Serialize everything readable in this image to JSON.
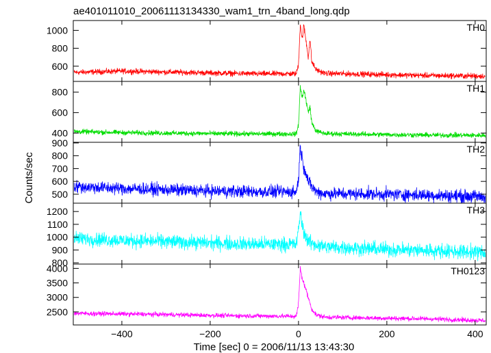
{
  "chart_data": {
    "type": "line",
    "title": "ae401011010_20061113134330_wam1_trn_4band_long.qdp",
    "xlabel": "Time [sec] 0 = 2006/11/13 13:43:30",
    "ylabel": "Counts/sec",
    "xlim": [
      -510,
      425
    ],
    "x_ticks": [
      -400,
      -200,
      0,
      200,
      400
    ],
    "grid": false,
    "panels": [
      {
        "name": "TH0",
        "color": "#ff0000",
        "ylim": [
          430,
          1110
        ],
        "y_ticks": [
          600,
          800,
          1000
        ],
        "profile": [
          [
            -510,
            530
          ],
          [
            -400,
            545
          ],
          [
            -300,
            535
          ],
          [
            -200,
            525
          ],
          [
            -100,
            515
          ],
          [
            -5,
            515
          ],
          [
            0,
            620
          ],
          [
            4,
            1080
          ],
          [
            8,
            900
          ],
          [
            12,
            1050
          ],
          [
            18,
            850
          ],
          [
            22,
            700
          ],
          [
            26,
            900
          ],
          [
            30,
            650
          ],
          [
            40,
            560
          ],
          [
            60,
            520
          ],
          [
            200,
            505
          ],
          [
            300,
            495
          ],
          [
            425,
            490
          ]
        ],
        "noise": 18
      },
      {
        "name": "TH1",
        "color": "#00dd00",
        "ylim": [
          310,
          905
        ],
        "y_ticks": [
          400,
          600,
          800
        ],
        "profile": [
          [
            -510,
            415
          ],
          [
            -400,
            405
          ],
          [
            -300,
            400
          ],
          [
            -200,
            395
          ],
          [
            -100,
            392
          ],
          [
            -5,
            392
          ],
          [
            0,
            480
          ],
          [
            4,
            850
          ],
          [
            8,
            750
          ],
          [
            12,
            820
          ],
          [
            18,
            700
          ],
          [
            22,
            600
          ],
          [
            26,
            660
          ],
          [
            30,
            500
          ],
          [
            40,
            420
          ],
          [
            60,
            395
          ],
          [
            200,
            385
          ],
          [
            300,
            380
          ],
          [
            425,
            378
          ]
        ],
        "noise": 14
      },
      {
        "name": "TH2",
        "color": "#0000ff",
        "ylim": [
          430,
          905
        ],
        "y_ticks": [
          500,
          600,
          700,
          800,
          900
        ],
        "profile": [
          [
            -510,
            560
          ],
          [
            -400,
            545
          ],
          [
            -300,
            535
          ],
          [
            -200,
            525
          ],
          [
            -100,
            520
          ],
          [
            -5,
            518
          ],
          [
            0,
            620
          ],
          [
            4,
            880
          ],
          [
            8,
            780
          ],
          [
            12,
            720
          ],
          [
            18,
            650
          ],
          [
            22,
            600
          ],
          [
            30,
            560
          ],
          [
            40,
            520
          ],
          [
            60,
            505
          ],
          [
            200,
            500
          ],
          [
            300,
            492
          ],
          [
            425,
            480
          ]
        ],
        "noise": 28
      },
      {
        "name": "TH3",
        "color": "#00ffff",
        "ylim": [
          790,
          1265
        ],
        "y_ticks": [
          800,
          900,
          1000,
          1100,
          1200
        ],
        "profile": [
          [
            -510,
            990
          ],
          [
            -400,
            975
          ],
          [
            -300,
            965
          ],
          [
            -200,
            955
          ],
          [
            -100,
            945
          ],
          [
            -5,
            945
          ],
          [
            0,
            1050
          ],
          [
            4,
            1200
          ],
          [
            8,
            1100
          ],
          [
            12,
            1040
          ],
          [
            20,
            980
          ],
          [
            30,
            950
          ],
          [
            60,
            925
          ],
          [
            200,
            905
          ],
          [
            300,
            895
          ],
          [
            425,
            880
          ]
        ],
        "noise": 32
      },
      {
        "name": "TH0123",
        "color": "#ff00ff",
        "ylim": [
          2050,
          4150
        ],
        "y_ticks": [
          2500,
          3000,
          3500,
          4000
        ],
        "profile": [
          [
            -510,
            2450
          ],
          [
            -400,
            2430
          ],
          [
            -300,
            2410
          ],
          [
            -200,
            2380
          ],
          [
            -100,
            2360
          ],
          [
            -5,
            2350
          ],
          [
            0,
            2800
          ],
          [
            4,
            4000
          ],
          [
            8,
            3700
          ],
          [
            12,
            3500
          ],
          [
            16,
            3300
          ],
          [
            20,
            3100
          ],
          [
            24,
            2900
          ],
          [
            30,
            2600
          ],
          [
            40,
            2400
          ],
          [
            60,
            2320
          ],
          [
            200,
            2280
          ],
          [
            300,
            2260
          ],
          [
            425,
            2200
          ]
        ],
        "noise": 45
      }
    ]
  }
}
